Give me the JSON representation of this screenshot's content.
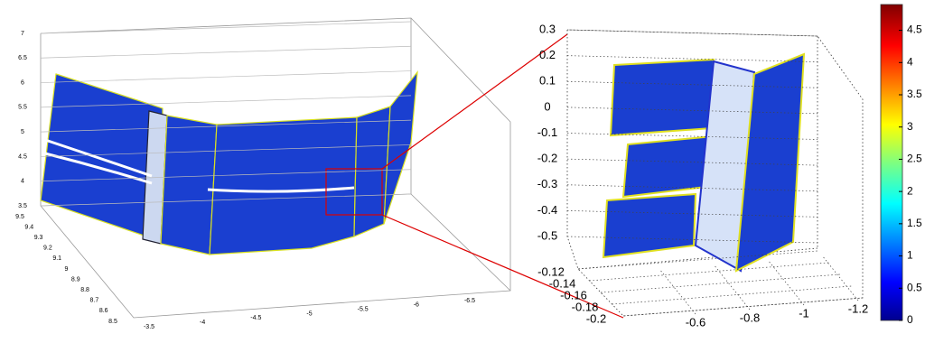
{
  "chart_data": [
    {
      "type": "scatter3d",
      "zlim": [
        3.5,
        7
      ],
      "zticks": [
        3.5,
        4,
        4.5,
        5,
        5.5,
        6,
        6.5,
        7
      ],
      "ylim": [
        9.5,
        8.5
      ],
      "yticks": [
        9.5,
        9.4,
        9.3,
        9.2,
        9.1,
        9,
        8.9,
        8.8,
        8.7,
        8.6,
        8.5
      ],
      "xlim": [
        -3.5,
        -6.5
      ],
      "xticks": [
        -3.5,
        -4,
        -4.5,
        -5,
        -5.5,
        -6,
        -6.5
      ]
    },
    {
      "type": "scatter3d",
      "zlim": [
        0.3,
        -0.5
      ],
      "zticks": [
        0.3,
        0.2,
        0.1,
        0,
        -0.1,
        -0.2,
        -0.3,
        -0.4,
        -0.5
      ],
      "ylim": [
        -0.12,
        -0.2
      ],
      "yticks": [
        -0.12,
        -0.14,
        -0.16,
        -0.18,
        -0.2
      ],
      "xlim": [
        -0.6,
        -1.2
      ],
      "xticks": [
        -0.6,
        -0.8,
        -1,
        -1.2
      ]
    },
    {
      "type": "colorbar",
      "colormap": "jet",
      "ylim": [
        0,
        4.9
      ],
      "yticks": [
        0,
        0.5,
        1,
        1.5,
        2,
        2.5,
        3,
        3.5,
        4,
        4.5
      ]
    }
  ]
}
